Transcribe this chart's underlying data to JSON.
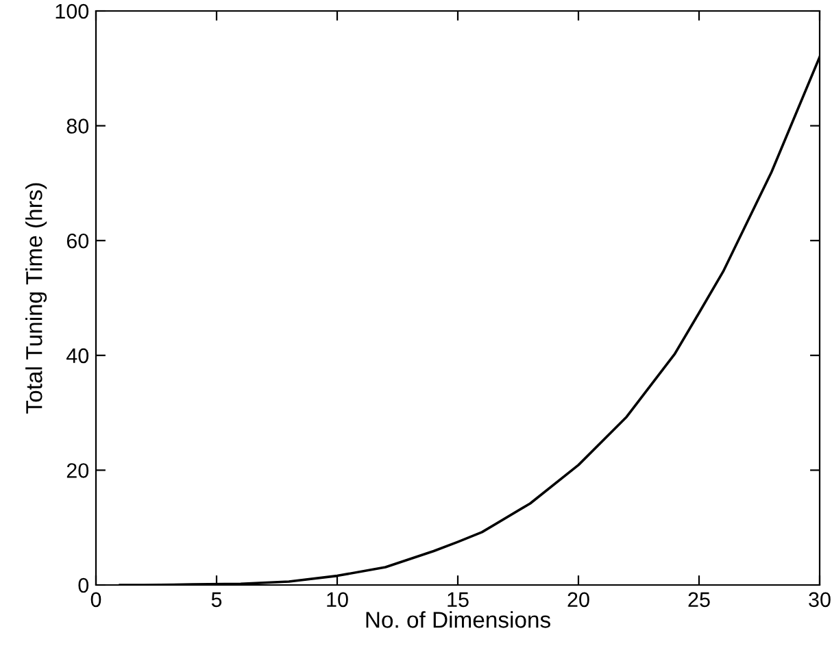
{
  "chart_data": {
    "type": "line",
    "xlabel": "No. of Dimensions",
    "ylabel": "Total Tuning Time (hrs)",
    "x": [
      1,
      2,
      4,
      6,
      8,
      10,
      12,
      14,
      15,
      16,
      18,
      20,
      22,
      24,
      25,
      26,
      28,
      30
    ],
    "series": [
      {
        "color": "#000000",
        "values": [
          0,
          0,
          0.1,
          0.2,
          0.6,
          1.6,
          3.1,
          5.9,
          7.5,
          9.2,
          14.2,
          20.9,
          29.3,
          40.3,
          47.4,
          54.6,
          71.9,
          92
        ]
      }
    ],
    "xlim": [
      0,
      30
    ],
    "ylim": [
      0,
      100
    ],
    "xticks": [
      0,
      5,
      10,
      15,
      20,
      25,
      30
    ],
    "yticks": [
      0,
      20,
      40,
      60,
      80,
      100
    ],
    "grid": false,
    "legend": false,
    "marker": "none",
    "line_style": "solid"
  }
}
